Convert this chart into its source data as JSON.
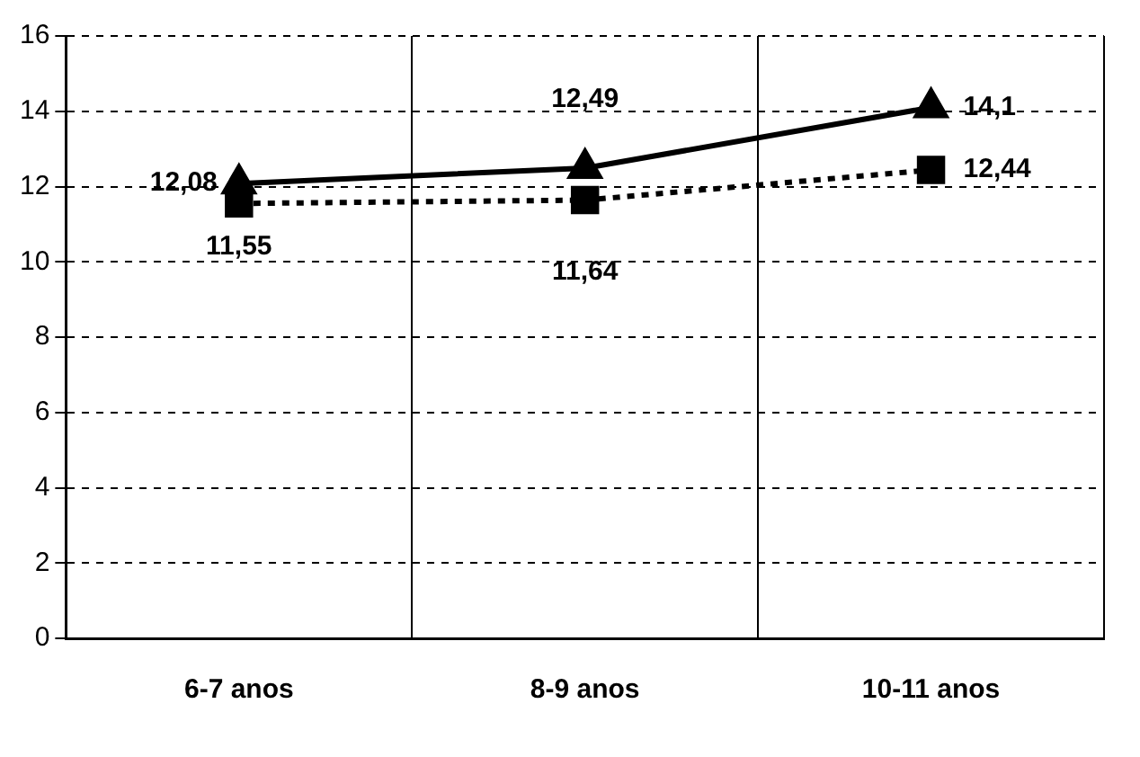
{
  "chart_data": {
    "type": "line",
    "categories": [
      "6-7 anos",
      "8-9 anos",
      "10-11 anos"
    ],
    "series": [
      {
        "color": "#000000",
        "values": [
          12.08,
          12.49,
          14.1
        ],
        "value_labels": [
          "12,08",
          "12,49",
          "14,1"
        ],
        "marker": "triangle",
        "line_style": "solid"
      },
      {
        "color": "#000000",
        "values": [
          11.55,
          11.64,
          12.44
        ],
        "value_labels": [
          "11,55",
          "11,64",
          "12,44"
        ],
        "marker": "square",
        "line_style": "dotted"
      }
    ],
    "ylim": [
      0,
      16
    ],
    "yticks": [
      0,
      2,
      4,
      6,
      8,
      10,
      12,
      14,
      16
    ],
    "grid": true,
    "legend": false
  }
}
